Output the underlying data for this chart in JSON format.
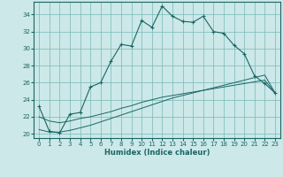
{
  "xlabel": "Humidex (Indice chaleur)",
  "bg_color": "#cce8e8",
  "grid_color": "#7ab8b8",
  "line_color": "#1a6666",
  "xlim": [
    -0.5,
    23.5
  ],
  "ylim": [
    19.5,
    35.5
  ],
  "xticks": [
    0,
    1,
    2,
    3,
    4,
    5,
    6,
    7,
    8,
    9,
    10,
    11,
    12,
    13,
    14,
    15,
    16,
    17,
    18,
    19,
    20,
    21,
    22,
    23
  ],
  "yticks": [
    20,
    22,
    24,
    26,
    28,
    30,
    32,
    34
  ],
  "series1_x": [
    0,
    1,
    2,
    3,
    4,
    5,
    6,
    7,
    8,
    9,
    10,
    11,
    12,
    13,
    14,
    15,
    16,
    17,
    18,
    19,
    20,
    21,
    22,
    23
  ],
  "series1_y": [
    23.2,
    20.3,
    20.1,
    22.3,
    22.5,
    25.5,
    26.0,
    28.5,
    30.5,
    30.3,
    33.3,
    32.5,
    35.0,
    33.8,
    33.2,
    33.1,
    33.8,
    32.0,
    31.8,
    30.4,
    29.4,
    26.8,
    25.9,
    24.8
  ],
  "series2_x": [
    0,
    1,
    2,
    3,
    4,
    5,
    6,
    7,
    8,
    9,
    10,
    11,
    12,
    13,
    14,
    15,
    16,
    17,
    18,
    19,
    20,
    21,
    22,
    23
  ],
  "series2_y": [
    22.0,
    21.5,
    21.3,
    21.5,
    21.8,
    22.0,
    22.3,
    22.6,
    23.0,
    23.3,
    23.7,
    24.0,
    24.3,
    24.5,
    24.7,
    24.9,
    25.1,
    25.3,
    25.5,
    25.7,
    25.9,
    26.1,
    26.3,
    24.8
  ],
  "series3_x": [
    0,
    1,
    2,
    3,
    4,
    5,
    6,
    7,
    8,
    9,
    10,
    11,
    12,
    13,
    14,
    15,
    16,
    17,
    18,
    19,
    20,
    21,
    22,
    23
  ],
  "series3_y": [
    20.5,
    20.2,
    20.2,
    20.4,
    20.7,
    21.0,
    21.4,
    21.8,
    22.2,
    22.6,
    23.0,
    23.4,
    23.8,
    24.2,
    24.5,
    24.8,
    25.1,
    25.4,
    25.7,
    26.0,
    26.3,
    26.6,
    26.9,
    24.8
  ]
}
